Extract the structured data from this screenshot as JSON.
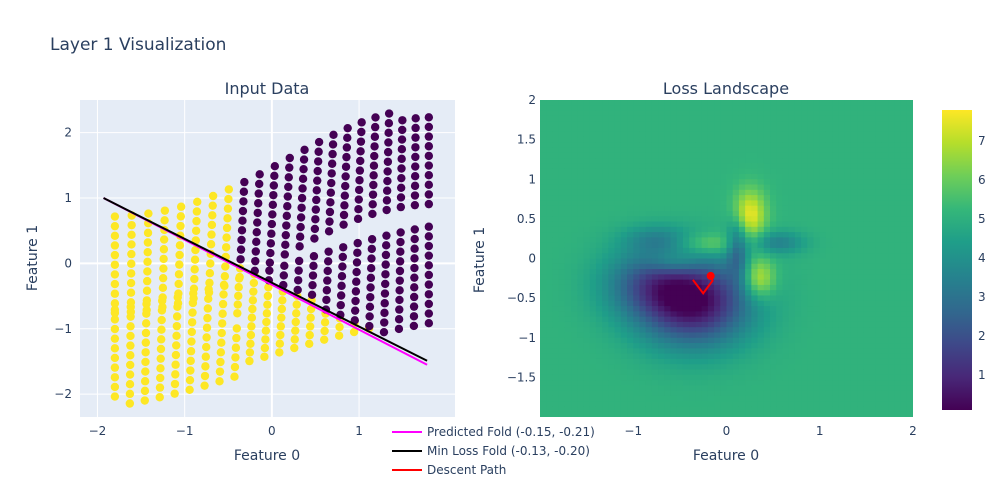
{
  "figure": {
    "title": "Layer 1 Visualization"
  },
  "chart_data": [
    {
      "type": "scatter",
      "title": "Input Data",
      "xlabel": "Feature 0",
      "ylabel": "Feature 1",
      "xlim": [
        -2.2,
        2.1
      ],
      "ylim": [
        -2.35,
        2.5
      ],
      "xticks": [
        -2,
        -1,
        0,
        1
      ],
      "xtick_labels": [
        "−2",
        "−1",
        "0",
        "1"
      ],
      "yticks": [
        -2,
        -1,
        0,
        1,
        2
      ],
      "ytick_labels": [
        "−2",
        "−1",
        "0",
        "1",
        "2"
      ],
      "grid": true,
      "point_colors": {
        "class_0": "#440154",
        "class_1": "#fde725"
      },
      "series": [
        {
          "name": "Predicted Fold (-0.15, -0.21)",
          "color": "#ff00ff",
          "x": [
            -1.93,
            1.78
          ],
          "y": [
            1.0,
            -1.55
          ]
        },
        {
          "name": "Min Loss Fold (-0.13, -0.20)",
          "color": "#000000",
          "x": [
            -1.93,
            1.78
          ],
          "y": [
            1.0,
            -1.49
          ]
        }
      ]
    },
    {
      "type": "heatmap",
      "title": "Loss Landscape",
      "xlabel": "Feature 0",
      "ylabel": "Feature 1",
      "xlim": [
        -2,
        2
      ],
      "ylim": [
        -2,
        2
      ],
      "xticks": [
        -1,
        0,
        1,
        2
      ],
      "xtick_labels": [
        "−1",
        "0",
        "1",
        "2"
      ],
      "yticks": [
        -1.5,
        -1,
        -0.5,
        0,
        0.5,
        1,
        1.5,
        2
      ],
      "ytick_labels": [
        "−1.5",
        "−1",
        "−0.5",
        "0",
        "0.5",
        "1",
        "1.5",
        "2"
      ],
      "colorscale": "Viridis",
      "zlim": [
        0.1,
        7.8
      ],
      "colorbar_ticks": [
        1,
        2,
        3,
        4,
        5,
        6,
        7
      ],
      "colorbar_tick_labels": [
        "1",
        "2",
        "3",
        "4",
        "5",
        "6",
        "7"
      ],
      "series": [
        {
          "name": "Descent Path",
          "color": "#ff0000",
          "x": [
            -0.36,
            -0.25,
            -0.15,
            -0.17
          ],
          "y": [
            -0.27,
            -0.44,
            -0.28,
            -0.22
          ]
        }
      ]
    }
  ],
  "legend": {
    "items": [
      {
        "label": "Predicted Fold (-0.15, -0.21)",
        "color": "#ff00ff"
      },
      {
        "label": "Min Loss Fold (-0.13, -0.20)",
        "color": "#000000"
      },
      {
        "label": "Descent Path",
        "color": "#ff0000"
      }
    ]
  }
}
